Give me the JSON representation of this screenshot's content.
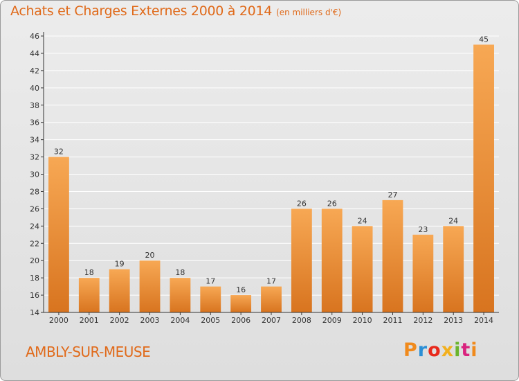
{
  "header": {
    "title": "Achats et Charges Externes 2000 à 2014",
    "subtitle": "(en milliers d'€)"
  },
  "footer": {
    "place": "AMBLY-SUR-MEUSE",
    "brand": "Proxiti",
    "brand_colors": [
      "#f08a1c",
      "#2a8fd6",
      "#e8291c",
      "#f2b01e",
      "#6ab42d",
      "#d9237e",
      "#f08a1c"
    ]
  },
  "colors": {
    "bar_light": "#f7a854",
    "bar_dark": "#d8741f",
    "axis": "#333333",
    "grid": "#ffffff",
    "title": "#e06a1a"
  },
  "chart_data": {
    "type": "bar",
    "title": "Achats et Charges Externes 2000 à 2014",
    "subtitle": "(en milliers d'€)",
    "xlabel": "",
    "ylabel": "",
    "categories": [
      "2000",
      "2001",
      "2002",
      "2003",
      "2004",
      "2005",
      "2006",
      "2007",
      "2008",
      "2009",
      "2010",
      "2011",
      "2012",
      "2013",
      "2014"
    ],
    "values": [
      32,
      18,
      19,
      20,
      18,
      17,
      16,
      17,
      26,
      26,
      24,
      27,
      23,
      24,
      45
    ],
    "ylim": [
      14,
      46
    ],
    "yticks": [
      14,
      16,
      18,
      20,
      22,
      24,
      26,
      28,
      30,
      32,
      34,
      36,
      38,
      40,
      42,
      44,
      46
    ],
    "grid": true,
    "data_labels": true
  }
}
